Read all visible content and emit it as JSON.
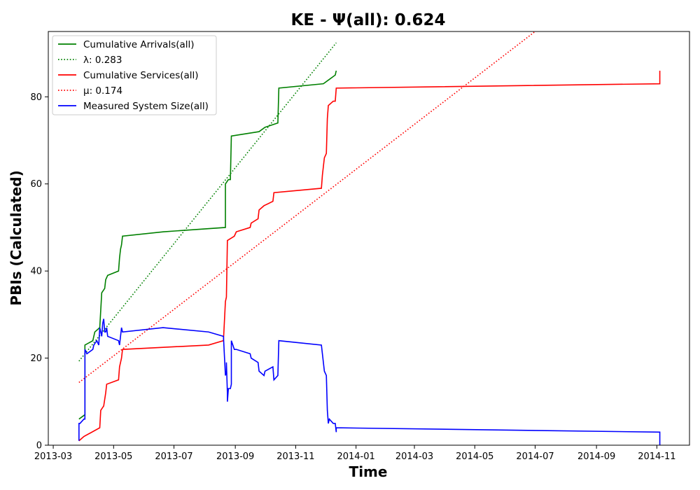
{
  "chart_data": {
    "type": "line",
    "title": "KE -  Ψ(all): 0.624",
    "xlabel": "Time",
    "ylabel": "PBIs (Calculated)",
    "xlim": [
      "2013-02-24",
      "2014-12-04"
    ],
    "ylim": [
      0,
      95
    ],
    "x_ticks": [
      "2013-03-01",
      "2013-05-01",
      "2013-07-01",
      "2013-09-01",
      "2013-11-01",
      "2014-01-01",
      "2014-03-01",
      "2014-05-01",
      "2014-07-01",
      "2014-09-01",
      "2014-11-01"
    ],
    "x_tick_labels": [
      "2013-03",
      "2013-05",
      "2013-07",
      "2013-09",
      "2013-11",
      "2014-01",
      "2014-03",
      "2014-05",
      "2014-07",
      "2014-09",
      "2014-11"
    ],
    "y_ticks": [
      0,
      20,
      40,
      60,
      80
    ],
    "y_tick_labels": [
      "0",
      "20",
      "40",
      "60",
      "80"
    ],
    "legend_position": "top-left",
    "grid": false,
    "series": [
      {
        "name": "Cumulative Arrivals(all)",
        "color": "#008000",
        "style": "solid",
        "points": [
          [
            "2013-03-27",
            6
          ],
          [
            "2013-04-02",
            7
          ],
          [
            "2013-04-02",
            23
          ],
          [
            "2013-04-10",
            24
          ],
          [
            "2013-04-12",
            26
          ],
          [
            "2013-04-17",
            27
          ],
          [
            "2013-04-18",
            31
          ],
          [
            "2013-04-19",
            35
          ],
          [
            "2013-04-22",
            36
          ],
          [
            "2013-04-23",
            38
          ],
          [
            "2013-04-25",
            39
          ],
          [
            "2013-05-06",
            40
          ],
          [
            "2013-05-07",
            43
          ],
          [
            "2013-05-08",
            45
          ],
          [
            "2013-05-09",
            46
          ],
          [
            "2013-05-10",
            48
          ],
          [
            "2013-06-20",
            49
          ],
          [
            "2013-08-22",
            50
          ],
          [
            "2013-08-22",
            60
          ],
          [
            "2013-08-25",
            61
          ],
          [
            "2013-08-27",
            61
          ],
          [
            "2013-08-28",
            71
          ],
          [
            "2013-09-25",
            72
          ],
          [
            "2013-10-01",
            73
          ],
          [
            "2013-10-14",
            74
          ],
          [
            "2013-10-15",
            82
          ],
          [
            "2013-11-29",
            83
          ],
          [
            "2013-12-05",
            84
          ],
          [
            "2013-12-11",
            85
          ],
          [
            "2013-12-12",
            86
          ]
        ]
      },
      {
        "name": "λ: 0.283",
        "color": "#008000",
        "style": "dotted",
        "points": [
          [
            "2013-03-27",
            19.3
          ],
          [
            "2013-12-12",
            92.4
          ]
        ]
      },
      {
        "name": "Cumulative Services(all)",
        "color": "#ff0000",
        "style": "solid",
        "points": [
          [
            "2013-03-27",
            1
          ],
          [
            "2013-04-01",
            2
          ],
          [
            "2013-04-17",
            4
          ],
          [
            "2013-04-18",
            8
          ],
          [
            "2013-04-21",
            9
          ],
          [
            "2013-04-23",
            12
          ],
          [
            "2013-04-24",
            14
          ],
          [
            "2013-05-06",
            15
          ],
          [
            "2013-05-07",
            18
          ],
          [
            "2013-05-09",
            20
          ],
          [
            "2013-05-10",
            22
          ],
          [
            "2013-08-05",
            23
          ],
          [
            "2013-08-20",
            24
          ],
          [
            "2013-08-22",
            33
          ],
          [
            "2013-08-23",
            34
          ],
          [
            "2013-08-24",
            47
          ],
          [
            "2013-08-31",
            48
          ],
          [
            "2013-09-02",
            49
          ],
          [
            "2013-09-16",
            50
          ],
          [
            "2013-09-17",
            51
          ],
          [
            "2013-09-24",
            52
          ],
          [
            "2013-09-25",
            54
          ],
          [
            "2013-09-30",
            55
          ],
          [
            "2013-10-09",
            56
          ],
          [
            "2013-10-10",
            58
          ],
          [
            "2013-11-27",
            59
          ],
          [
            "2013-11-28",
            62
          ],
          [
            "2013-11-30",
            66
          ],
          [
            "2013-12-02",
            67
          ],
          [
            "2013-12-03",
            75
          ],
          [
            "2013-12-04",
            78
          ],
          [
            "2013-12-09",
            79
          ],
          [
            "2013-12-11",
            79
          ],
          [
            "2013-12-12",
            82
          ],
          [
            "2014-11-04",
            83
          ],
          [
            "2014-11-04",
            86
          ]
        ]
      },
      {
        "name": "μ: 0.174",
        "color": "#ff0000",
        "style": "dotted",
        "points": [
          [
            "2013-03-27",
            14.4
          ],
          [
            "2014-07-01",
            95
          ]
        ]
      },
      {
        "name": "Measured System Size(all)",
        "color": "#0000ff",
        "style": "solid",
        "points": [
          [
            "2013-03-27",
            1
          ],
          [
            "2013-03-27",
            5
          ],
          [
            "2013-03-28",
            5
          ],
          [
            "2013-04-01",
            6
          ],
          [
            "2013-04-02",
            6
          ],
          [
            "2013-04-02",
            22
          ],
          [
            "2013-04-04",
            21
          ],
          [
            "2013-04-10",
            22
          ],
          [
            "2013-04-11",
            23
          ],
          [
            "2013-04-14",
            24
          ],
          [
            "2013-04-16",
            23
          ],
          [
            "2013-04-17",
            27
          ],
          [
            "2013-04-19",
            25
          ],
          [
            "2013-04-20",
            28
          ],
          [
            "2013-04-21",
            29
          ],
          [
            "2013-04-22",
            26
          ],
          [
            "2013-04-23",
            26
          ],
          [
            "2013-04-24",
            27
          ],
          [
            "2013-04-25",
            25
          ],
          [
            "2013-05-06",
            24
          ],
          [
            "2013-05-07",
            23
          ],
          [
            "2013-05-08",
            25
          ],
          [
            "2013-05-09",
            27
          ],
          [
            "2013-05-10",
            26
          ],
          [
            "2013-06-20",
            27
          ],
          [
            "2013-08-05",
            26
          ],
          [
            "2013-08-20",
            25
          ],
          [
            "2013-08-22",
            16
          ],
          [
            "2013-08-23",
            17
          ],
          [
            "2013-08-23",
            19
          ],
          [
            "2013-08-24",
            12
          ],
          [
            "2013-08-24",
            10
          ],
          [
            "2013-08-25",
            13
          ],
          [
            "2013-08-27",
            13
          ],
          [
            "2013-08-28",
            14
          ],
          [
            "2013-08-28",
            24
          ],
          [
            "2013-08-31",
            22
          ],
          [
            "2013-09-02",
            22
          ],
          [
            "2013-09-16",
            21
          ],
          [
            "2013-09-17",
            20
          ],
          [
            "2013-09-24",
            19
          ],
          [
            "2013-09-25",
            17
          ],
          [
            "2013-09-30",
            16
          ],
          [
            "2013-10-01",
            17
          ],
          [
            "2013-10-09",
            18
          ],
          [
            "2013-10-10",
            15
          ],
          [
            "2013-10-14",
            16
          ],
          [
            "2013-10-15",
            24
          ],
          [
            "2013-11-27",
            23
          ],
          [
            "2013-11-28",
            21
          ],
          [
            "2013-11-30",
            17
          ],
          [
            "2013-12-02",
            16
          ],
          [
            "2013-12-03",
            8
          ],
          [
            "2013-12-04",
            5
          ],
          [
            "2013-12-05",
            6
          ],
          [
            "2013-12-09",
            5
          ],
          [
            "2013-12-11",
            5
          ],
          [
            "2013-12-12",
            3
          ],
          [
            "2013-12-12",
            4
          ],
          [
            "2014-11-04",
            3
          ],
          [
            "2014-11-04",
            0
          ]
        ]
      }
    ]
  }
}
